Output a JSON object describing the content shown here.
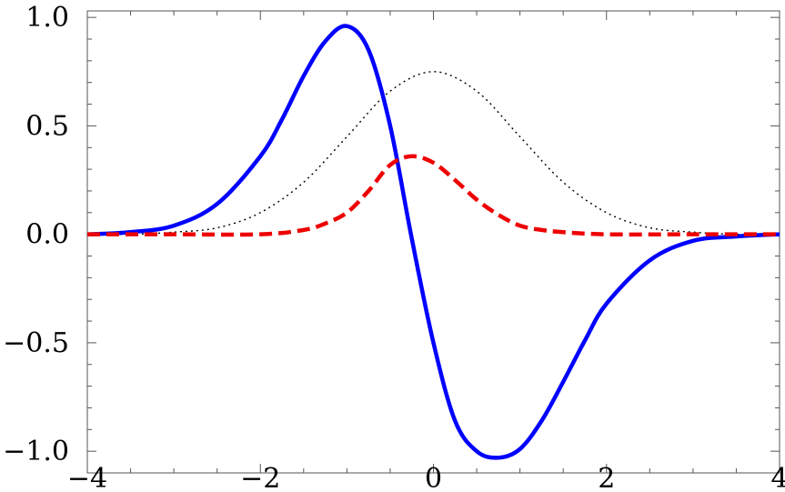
{
  "chart_data": {
    "type": "line",
    "title": "",
    "xlabel": "",
    "ylabel": "",
    "xlim": [
      -4,
      4
    ],
    "ylim": [
      -1.1,
      1.03
    ],
    "x_ticks": [
      -4,
      -2,
      0,
      2,
      4
    ],
    "x_tick_labels": [
      "−4",
      "−2",
      "0",
      "2",
      "4"
    ],
    "y_ticks": [
      1.0,
      0.5,
      0.0,
      -0.5,
      -1.0
    ],
    "y_tick_labels": [
      "1.0",
      "0.5",
      "0.0",
      "−0.5",
      "−1.0"
    ],
    "grid": false,
    "legend": "none",
    "series": [
      {
        "style": "solid",
        "color": "#0000ff",
        "x": [
          -4.0,
          -3.5,
          -3.0,
          -2.5,
          -2.0,
          -1.75,
          -1.5,
          -1.25,
          -1.0,
          -0.75,
          -0.5,
          -0.25,
          0.0,
          0.25,
          0.5,
          0.75,
          1.0,
          1.25,
          1.5,
          1.75,
          2.0,
          2.5,
          3.0,
          3.5,
          4.0
        ],
        "y": [
          0.0,
          0.01,
          0.04,
          0.14,
          0.36,
          0.53,
          0.73,
          0.89,
          0.96,
          0.85,
          0.5,
          -0.02,
          -0.5,
          -0.86,
          -1.0,
          -1.03,
          -0.99,
          -0.86,
          -0.68,
          -0.49,
          -0.32,
          -0.12,
          -0.03,
          -0.01,
          0.0
        ]
      },
      {
        "style": "dotted",
        "color": "#000000",
        "x": [
          -4.0,
          -3.5,
          -3.0,
          -2.5,
          -2.0,
          -1.5,
          -1.0,
          -0.5,
          0.0,
          0.5,
          1.0,
          1.5,
          2.0,
          2.5,
          3.0,
          3.5,
          4.0
        ],
        "y": [
          0.0,
          0.0,
          0.01,
          0.03,
          0.1,
          0.24,
          0.45,
          0.66,
          0.75,
          0.66,
          0.45,
          0.24,
          0.1,
          0.03,
          0.01,
          0.0,
          0.0
        ]
      },
      {
        "style": "dashed",
        "color": "#ee0000",
        "x": [
          -4.0,
          -3.0,
          -2.0,
          -1.5,
          -1.25,
          -1.0,
          -0.75,
          -0.5,
          -0.25,
          0.0,
          0.25,
          0.5,
          0.75,
          1.0,
          1.25,
          1.5,
          2.0,
          3.0,
          4.0
        ],
        "y": [
          0.0,
          0.0,
          0.0,
          0.02,
          0.05,
          0.1,
          0.2,
          0.32,
          0.36,
          0.33,
          0.25,
          0.16,
          0.09,
          0.04,
          0.02,
          0.01,
          0.0,
          0.0,
          0.0
        ]
      }
    ]
  }
}
